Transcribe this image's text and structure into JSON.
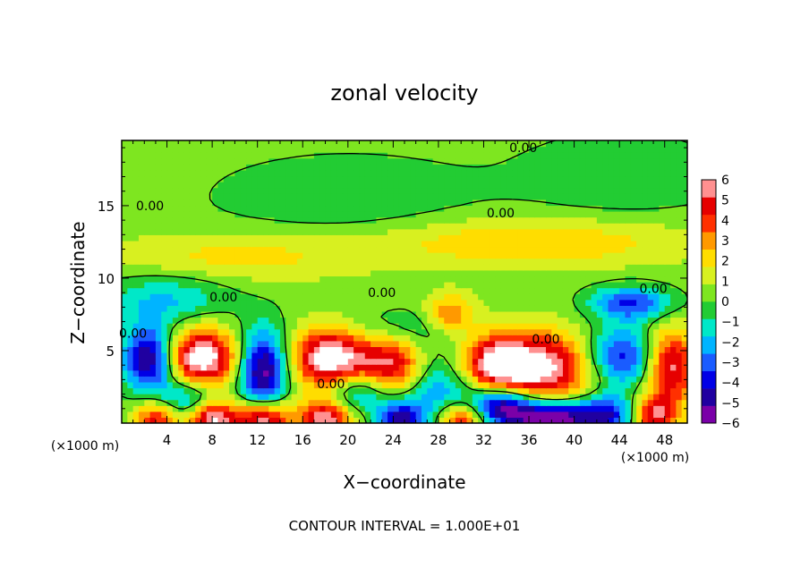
{
  "chart_data": {
    "type": "heatmap",
    "title": "zonal velocity",
    "xlabel": "X−coordinate",
    "ylabel": "Z−coordinate",
    "x_unit_label": "(×1000 m)",
    "y_unit_label": "(×1000 m)",
    "footer": "CONTOUR INTERVAL = 1.000E+01",
    "xlim": [
      0,
      50
    ],
    "ylim": [
      0,
      19.5
    ],
    "x_ticks": [
      4,
      8,
      12,
      16,
      20,
      24,
      28,
      32,
      36,
      40,
      44,
      48
    ],
    "x_tick_labels": [
      "4",
      "8",
      "12",
      "16",
      "20",
      "24",
      "28",
      "32",
      "36",
      "40",
      "44",
      "48"
    ],
    "y_ticks": [
      5,
      10,
      15
    ],
    "y_tick_labels": [
      "5",
      "10",
      "15"
    ],
    "colorbar": {
      "min": -6,
      "max": 6,
      "ticks": [
        6,
        5,
        4,
        3,
        2,
        1,
        0,
        -1,
        -2,
        -3,
        -4,
        -5,
        -6
      ],
      "tick_labels": [
        "6",
        "5",
        "4",
        "3",
        "2",
        "1",
        "0",
        "−1",
        "−2",
        "−3",
        "−4",
        "−5",
        "−6"
      ],
      "colors": [
        "#7a00a8",
        "#2000a0",
        "#0000e6",
        "#1a5cff",
        "#00b4ff",
        "#00e8c8",
        "#22cc33",
        "#7ee620",
        "#d8f020",
        "#ffdd00",
        "#ff9900",
        "#ff3000",
        "#e60000",
        "#ff9090"
      ]
    },
    "contour_labels": [
      {
        "text": "0.00",
        "x": 2.5,
        "y": 15.0
      },
      {
        "text": "0.00",
        "x": 35.5,
        "y": 19.0
      },
      {
        "text": "0.00",
        "x": 33.5,
        "y": 14.5
      },
      {
        "text": "0.00",
        "x": 9.0,
        "y": 8.7
      },
      {
        "text": "0.00",
        "x": 23.0,
        "y": 9.0
      },
      {
        "text": "0.00",
        "x": 47.0,
        "y": 9.3
      },
      {
        "text": "0.00",
        "x": 1.0,
        "y": 6.2
      },
      {
        "text": "0.00",
        "x": 37.5,
        "y": 5.8
      },
      {
        "text": "0.00",
        "x": 18.5,
        "y": 2.7
      }
    ],
    "features": [
      {
        "x": 2.5,
        "y": 4.5,
        "v": -5.5,
        "sx": 1.6,
        "sy": 1.5
      },
      {
        "x": 7.0,
        "y": 4.5,
        "v": 6.0,
        "sx": 2.3,
        "sy": 1.5
      },
      {
        "x": 12.5,
        "y": 3.7,
        "v": -5.5,
        "sx": 1.5,
        "sy": 1.9
      },
      {
        "x": 18.5,
        "y": 4.5,
        "v": 6.0,
        "sx": 2.4,
        "sy": 1.5
      },
      {
        "x": 24.0,
        "y": 4.0,
        "v": 4.5,
        "sx": 2.0,
        "sy": 1.6
      },
      {
        "x": 28.0,
        "y": 2.0,
        "v": -3.0,
        "sx": 2.5,
        "sy": 2.0
      },
      {
        "x": 37.0,
        "y": 3.8,
        "v": 5.5,
        "sx": 4.0,
        "sy": 1.8
      },
      {
        "x": 33.0,
        "y": 4.0,
        "v": 3.5,
        "sx": 2.0,
        "sy": 1.5
      },
      {
        "x": 44.0,
        "y": 4.5,
        "v": -4.5,
        "sx": 2.5,
        "sy": 1.5
      },
      {
        "x": 48.5,
        "y": 4.0,
        "v": 5.0,
        "sx": 1.6,
        "sy": 1.8
      },
      {
        "x": 3.0,
        "y": 0.3,
        "v": 4.0,
        "sx": 1.3,
        "sy": 0.9
      },
      {
        "x": 8.0,
        "y": 0.3,
        "v": 5.5,
        "sx": 1.5,
        "sy": 0.9
      },
      {
        "x": 12.5,
        "y": 0.3,
        "v": 5.5,
        "sx": 1.7,
        "sy": 0.9
      },
      {
        "x": 18.0,
        "y": 0.3,
        "v": 5.0,
        "sx": 1.6,
        "sy": 0.9
      },
      {
        "x": 24.5,
        "y": 0.3,
        "v": -4.0,
        "sx": 1.4,
        "sy": 0.9
      },
      {
        "x": 30.0,
        "y": 0.3,
        "v": 5.0,
        "sx": 1.6,
        "sy": 0.9
      },
      {
        "x": 33.5,
        "y": 1.3,
        "v": -6.0,
        "sx": 2.0,
        "sy": 1.0
      },
      {
        "x": 38.0,
        "y": 0.4,
        "v": -6.0,
        "sx": 2.5,
        "sy": 0.9
      },
      {
        "x": 43.0,
        "y": 0.6,
        "v": -4.0,
        "sx": 2.0,
        "sy": 1.0
      },
      {
        "x": 47.0,
        "y": 0.5,
        "v": 4.5,
        "sx": 1.5,
        "sy": 1.0
      },
      {
        "x": 6.0,
        "y": 1.8,
        "v": -3.0,
        "sx": 2.0,
        "sy": 1.0
      },
      {
        "x": 21.0,
        "y": 2.2,
        "v": -3.0,
        "sx": 2.0,
        "sy": 1.0
      },
      {
        "x": 45.0,
        "y": 8.3,
        "v": -3.5,
        "sx": 2.5,
        "sy": 0.8
      },
      {
        "x": 29.0,
        "y": 7.5,
        "v": 3.0,
        "sx": 1.5,
        "sy": 1.0
      },
      {
        "x": 36.0,
        "y": 12.5,
        "v": 2.0,
        "sx": 10.0,
        "sy": 1.2
      },
      {
        "x": 10.0,
        "y": 11.5,
        "v": 1.5,
        "sx": 8.0,
        "sy": 1.2
      },
      {
        "x": 4.0,
        "y": 8.5,
        "v": -2.0,
        "sx": 4.0,
        "sy": 1.3
      },
      {
        "x": 20.0,
        "y": 15.5,
        "v": -1.0,
        "sx": 8.0,
        "sy": 2.0
      },
      {
        "x": 44.0,
        "y": 17.0,
        "v": -1.0,
        "sx": 6.0,
        "sy": 2.0
      },
      {
        "x": 25.0,
        "y": 6.5,
        "v": -1.5,
        "sx": 4.0,
        "sy": 1.0
      }
    ]
  }
}
